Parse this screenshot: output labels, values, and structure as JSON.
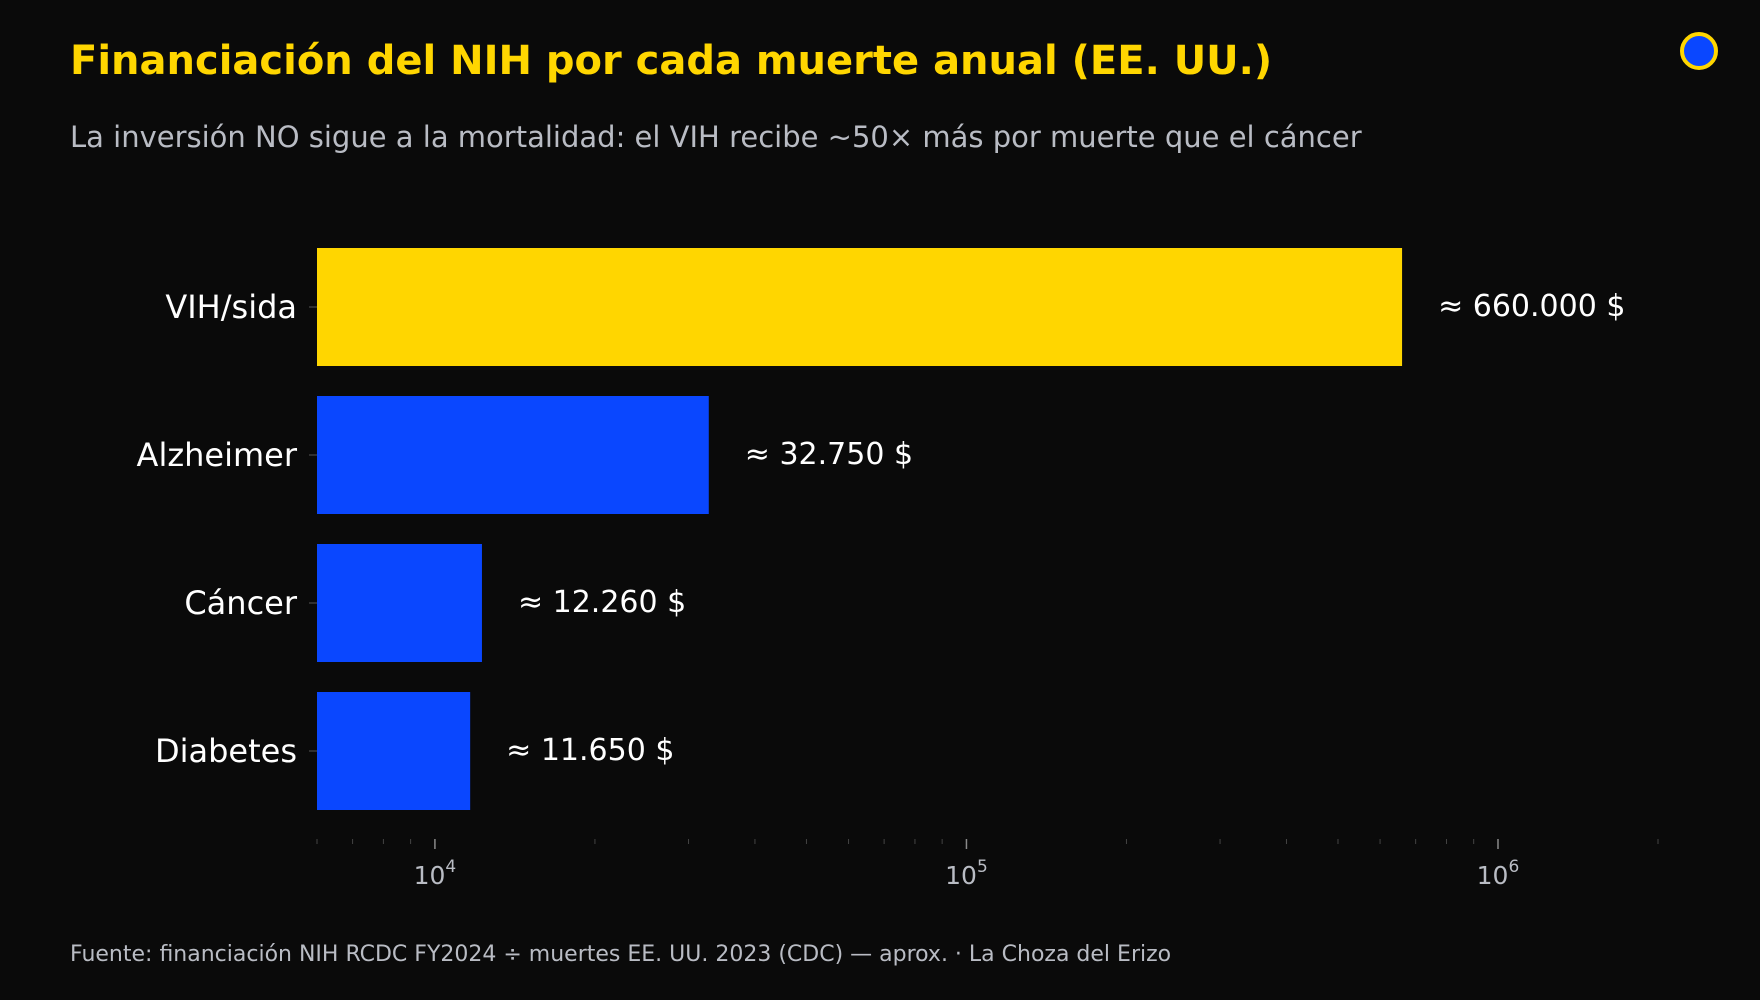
{
  "header": {
    "title": "Financiación del NIH por cada muerte anual (EE. UU.)",
    "subtitle": "La inversión NO sigue a la mortalidad: el VIH recibe ~50× más por muerte que el cáncer"
  },
  "footer": {
    "source": "Fuente: financiación NIH RCDC FY2024 ÷ muertes EE. UU. 2023 (CDC) — aprox.  ·  La Choza del Erizo"
  },
  "chart_data": {
    "type": "bar",
    "orientation": "horizontal",
    "x_scale": "log",
    "xlim": [
      6000,
      2000000
    ],
    "categories": [
      "VIH/sida",
      "Alzheimer",
      "Cáncer",
      "Diabetes"
    ],
    "values": [
      660000,
      32750,
      12260,
      11650
    ],
    "data_labels": [
      "≈ 660.000 $",
      "≈ 32.750 $",
      "≈ 12.260 $",
      "≈ 11.650 $"
    ],
    "bar_colors": [
      "#ffd600",
      "#0a47ff",
      "#0a47ff",
      "#0a47ff"
    ],
    "x_ticks": [
      {
        "value": 10000,
        "base": "10",
        "exp": "4"
      },
      {
        "value": 100000,
        "base": "10",
        "exp": "5"
      },
      {
        "value": 1000000,
        "base": "10",
        "exp": "6"
      }
    ],
    "grid": false,
    "legend": "none"
  },
  "colors": {
    "background": "#0a0a0a",
    "accent": "#ffd600",
    "bar": "#0a47ff",
    "text": "#ffffff",
    "muted": "#b9bcc4"
  }
}
